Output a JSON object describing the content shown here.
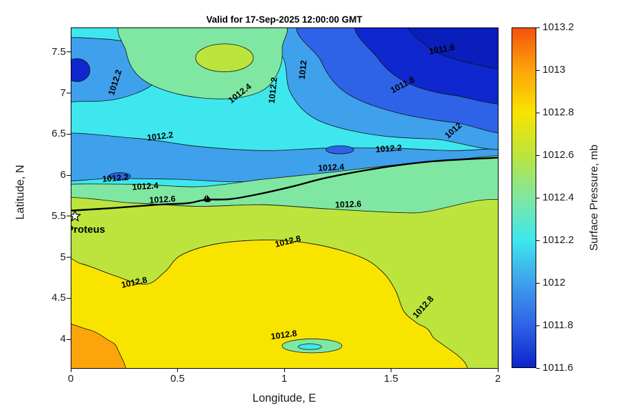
{
  "figure": {
    "title": "Valid for 17-Sep-2025 12:00:00 GMT",
    "background": "#FFFFFF"
  },
  "axes": {
    "xlabel": "Longitude, E",
    "ylabel": "Latitude, N",
    "xlim": [
      0,
      2
    ],
    "ylim": [
      3.65,
      7.8
    ],
    "x_ticks": [
      {
        "v": 0,
        "label": "0"
      },
      {
        "v": 0.5,
        "label": "0.5"
      },
      {
        "v": 1,
        "label": "1"
      },
      {
        "v": 1.5,
        "label": "1.5"
      },
      {
        "v": 2,
        "label": "2"
      }
    ],
    "y_ticks": [
      {
        "v": 4,
        "label": "4"
      },
      {
        "v": 4.5,
        "label": "4.5"
      },
      {
        "v": 5,
        "label": "5"
      },
      {
        "v": 5.5,
        "label": "5.5"
      },
      {
        "v": 6,
        "label": "6"
      },
      {
        "v": 6.5,
        "label": "6.5"
      },
      {
        "v": 7,
        "label": "7"
      },
      {
        "v": 7.5,
        "label": "7.5"
      }
    ]
  },
  "colorbar": {
    "label": "Surface Pressure, mb",
    "min": 1011.6,
    "max": 1013.2,
    "ticks": [
      {
        "v": 1013.2,
        "label": "1013.2"
      },
      {
        "v": 1013,
        "label": "1013"
      },
      {
        "v": 1012.8,
        "label": "1012.8"
      },
      {
        "v": 1012.6,
        "label": "1012.6"
      },
      {
        "v": 1012.4,
        "label": "1012.4"
      },
      {
        "v": 1012.2,
        "label": "1012.2"
      },
      {
        "v": 1012,
        "label": "1012"
      },
      {
        "v": 1011.8,
        "label": "1011.8"
      },
      {
        "v": 1011.6,
        "label": "1011.6"
      }
    ],
    "gradient_stops": [
      {
        "v": 1011.6,
        "color": "#0B24C8"
      },
      {
        "v": 1011.8,
        "color": "#2E63E8"
      },
      {
        "v": 1012.0,
        "color": "#3FA0EC"
      },
      {
        "v": 1012.2,
        "color": "#3EE7EE"
      },
      {
        "v": 1012.4,
        "color": "#7FE7A1"
      },
      {
        "v": 1012.6,
        "color": "#BCE43C"
      },
      {
        "v": 1012.8,
        "color": "#F9E400"
      },
      {
        "v": 1013.0,
        "color": "#FCA50A"
      },
      {
        "v": 1013.2,
        "color": "#F3530D"
      }
    ]
  },
  "chart_data": {
    "type": "heatmap",
    "subtype": "filled-contour-map",
    "title": "Valid for 17-Sep-2025 12:00:00 GMT",
    "xlabel": "Longitude, E",
    "ylabel": "Latitude, N",
    "value_label": "Surface Pressure, mb",
    "units": "mb",
    "xlim": [
      0,
      2
    ],
    "ylim": [
      3.65,
      7.8
    ],
    "contour_interval": 0.2,
    "contour_levels": [
      1011.6,
      1011.8,
      1012,
      1012.2,
      1012.4,
      1012.6,
      1012.8,
      1013,
      1013.2
    ],
    "base_fill": {
      "band": "1012.2-1012.4",
      "color": "#3EE7EE"
    },
    "shapes": [
      {
        "kind": "poly",
        "band": "1012-1012.2-trough",
        "color": "#3FA0EC",
        "points": [
          [
            -0.1,
            6.48
          ],
          [
            0.3,
            6.45
          ],
          [
            0.6,
            6.35
          ],
          [
            0.9,
            6.3
          ],
          [
            1.2,
            6.33
          ],
          [
            1.5,
            6.33
          ],
          [
            1.8,
            6.3
          ],
          [
            2.1,
            6.33
          ],
          [
            2.1,
            6.2
          ],
          [
            1.7,
            6.17
          ],
          [
            1.4,
            6.07
          ],
          [
            1.1,
            5.99
          ],
          [
            0.8,
            5.92
          ],
          [
            0.5,
            5.95
          ],
          [
            0.2,
            5.96
          ],
          [
            -0.1,
            5.97
          ]
        ]
      },
      {
        "kind": "ellipse",
        "band": "below-1012-oval",
        "color": "#2E63E8",
        "cx": 1.26,
        "cy": 6.31,
        "rx": 0.065,
        "ry": 0.05
      },
      {
        "kind": "ellipse",
        "band": "below-1012-dot",
        "color": "#2E63E8",
        "cx": 0.23,
        "cy": 5.99,
        "rx": 0.05,
        "ry": 0.04
      },
      {
        "kind": "poly",
        "band": "1012-1012.2-topleft",
        "color": "#3FA0EC",
        "points": [
          [
            -0.1,
            7.6
          ],
          [
            0.15,
            7.66
          ],
          [
            0.35,
            7.55
          ],
          [
            0.43,
            7.3
          ],
          [
            0.37,
            7.08
          ],
          [
            0.22,
            6.93
          ],
          [
            0.05,
            6.9
          ],
          [
            -0.1,
            6.95
          ]
        ]
      },
      {
        "kind": "ellipse",
        "band": "below-1011.8-leftspot",
        "color": "#0E27CE",
        "cx": 0.03,
        "cy": 7.28,
        "rx": 0.06,
        "ry": 0.14
      },
      {
        "kind": "poly",
        "band": "1012-1012.2-right",
        "color": "#3FA0EC",
        "points": [
          [
            0.93,
            7.9
          ],
          [
            1.0,
            7.4
          ],
          [
            1.03,
            7.0
          ],
          [
            1.15,
            6.68
          ],
          [
            1.4,
            6.5
          ],
          [
            1.7,
            6.44
          ],
          [
            2.1,
            6.42
          ],
          [
            2.1,
            7.9
          ]
        ]
      },
      {
        "kind": "poly",
        "band": "1011.8-1012-right",
        "color": "#2E63E8",
        "points": [
          [
            1.12,
            7.9
          ],
          [
            1.17,
            7.4
          ],
          [
            1.28,
            7.02
          ],
          [
            1.5,
            6.78
          ],
          [
            1.8,
            6.64
          ],
          [
            2.1,
            6.6
          ],
          [
            2.1,
            7.9
          ]
        ]
      },
      {
        "kind": "poly",
        "band": "1011.6-1011.8-right",
        "color": "#0E27CE",
        "points": [
          [
            1.37,
            7.9
          ],
          [
            1.44,
            7.42
          ],
          [
            1.58,
            7.12
          ],
          [
            1.8,
            6.97
          ],
          [
            2.1,
            6.93
          ],
          [
            2.1,
            7.9
          ]
        ]
      },
      {
        "kind": "poly",
        "band": "below-1011.6-corner",
        "color": "#0A1EBC",
        "points": [
          [
            1.6,
            7.9
          ],
          [
            1.68,
            7.55
          ],
          [
            1.88,
            7.36
          ],
          [
            2.1,
            7.32
          ],
          [
            2.1,
            7.9
          ]
        ]
      },
      {
        "kind": "poly",
        "band": "1012.4-1012.6-topmid",
        "color": "#7FE7A1",
        "points": [
          [
            0.28,
            7.9
          ],
          [
            0.26,
            7.5
          ],
          [
            0.33,
            7.18
          ],
          [
            0.5,
            6.99
          ],
          [
            0.72,
            6.93
          ],
          [
            0.89,
            7.02
          ],
          [
            0.97,
            7.25
          ],
          [
            0.99,
            7.55
          ],
          [
            0.95,
            7.9
          ]
        ]
      },
      {
        "kind": "ellipse",
        "band": "above-1012.6-topspot",
        "color": "#BCE43C",
        "cx": 0.72,
        "cy": 7.43,
        "rx": 0.135,
        "ry": 0.17
      },
      {
        "kind": "poly",
        "band": "1012.4-1012.6-band",
        "color": "#7FE7A1",
        "points": [
          [
            -0.1,
            5.87
          ],
          [
            0.3,
            5.89
          ],
          [
            0.6,
            5.86
          ],
          [
            0.9,
            5.95
          ],
          [
            1.2,
            6.03
          ],
          [
            1.5,
            6.12
          ],
          [
            1.8,
            6.19
          ],
          [
            2.1,
            6.19
          ],
          [
            2.1,
            5.56
          ],
          [
            1.6,
            5.54
          ],
          [
            1.2,
            5.59
          ],
          [
            0.9,
            5.64
          ],
          [
            0.6,
            5.62
          ],
          [
            0.3,
            5.66
          ],
          [
            -0.1,
            5.68
          ]
        ]
      },
      {
        "kind": "poly",
        "band": "1012.6-1012.8",
        "color": "#BCE43C",
        "points": [
          [
            -0.1,
            5.68
          ],
          [
            0.3,
            5.66
          ],
          [
            0.6,
            5.62
          ],
          [
            0.9,
            5.64
          ],
          [
            1.2,
            5.59
          ],
          [
            1.6,
            5.54
          ],
          [
            2.1,
            5.56
          ],
          [
            2.1,
            3.5
          ],
          [
            1.73,
            3.5
          ],
          [
            1.69,
            4.05
          ],
          [
            1.62,
            4.2
          ],
          [
            1.56,
            4.34
          ],
          [
            1.52,
            4.6
          ],
          [
            1.46,
            4.82
          ],
          [
            1.36,
            5.0
          ],
          [
            1.16,
            5.15
          ],
          [
            0.95,
            5.21
          ],
          [
            0.7,
            5.17
          ],
          [
            0.52,
            5.03
          ],
          [
            0.44,
            4.82
          ],
          [
            0.35,
            4.67
          ],
          [
            0.2,
            4.78
          ],
          [
            0.05,
            4.92
          ],
          [
            -0.1,
            4.97
          ]
        ]
      },
      {
        "kind": "poly",
        "band": "1012.8-1013",
        "color": "#F9E400",
        "points": [
          [
            -0.1,
            4.97
          ],
          [
            0.05,
            4.92
          ],
          [
            0.2,
            4.78
          ],
          [
            0.35,
            4.67
          ],
          [
            0.44,
            4.82
          ],
          [
            0.52,
            5.03
          ],
          [
            0.7,
            5.17
          ],
          [
            0.95,
            5.21
          ],
          [
            1.16,
            5.15
          ],
          [
            1.36,
            5.0
          ],
          [
            1.46,
            4.82
          ],
          [
            1.52,
            4.6
          ],
          [
            1.56,
            4.34
          ],
          [
            1.62,
            4.2
          ],
          [
            1.69,
            4.05
          ],
          [
            1.73,
            3.5
          ],
          [
            -0.1,
            3.5
          ]
        ]
      },
      {
        "kind": "ellipse",
        "band": "1012.6-dip-bottom",
        "color": "#7FE7A1",
        "cx": 1.13,
        "cy": 3.92,
        "rx": 0.14,
        "ry": 0.085
      },
      {
        "kind": "ellipse",
        "band": "1012.4-dip-bottom",
        "color": "#3EE7EE",
        "cx": 1.12,
        "cy": 3.91,
        "rx": 0.055,
        "ry": 0.035
      },
      {
        "kind": "poly",
        "band": "1013-1013.2-corner",
        "color": "#FCA50A",
        "points": [
          [
            -0.1,
            4.18
          ],
          [
            0.08,
            4.12
          ],
          [
            0.17,
            4.0
          ],
          [
            0.22,
            3.88
          ],
          [
            0.24,
            3.5
          ],
          [
            -0.1,
            3.5
          ]
        ]
      }
    ],
    "contour_labels": [
      {
        "text": "1012.2",
        "lon": 0.22,
        "lat": 7.12,
        "rot": -72
      },
      {
        "text": "1012.4",
        "lon": 0.8,
        "lat": 6.97,
        "rot": -38
      },
      {
        "text": "1012.2",
        "lon": 0.96,
        "lat": 7.03,
        "rot": -84
      },
      {
        "text": "1012",
        "lon": 1.1,
        "lat": 7.28,
        "rot": -84
      },
      {
        "text": "1011.8",
        "lon": 1.56,
        "lat": 7.07,
        "rot": -28
      },
      {
        "text": "1011.6",
        "lon": 1.74,
        "lat": 7.5,
        "rot": -10
      },
      {
        "text": "1012",
        "lon": 1.8,
        "lat": 6.52,
        "rot": -42
      },
      {
        "text": "1012.2",
        "lon": 0.42,
        "lat": 6.44,
        "rot": -7
      },
      {
        "text": "1012.2",
        "lon": 1.49,
        "lat": 6.29,
        "rot": -4
      },
      {
        "text": "1012.4",
        "lon": 1.22,
        "lat": 6.06,
        "rot": -3
      },
      {
        "text": "1012.2",
        "lon": 0.21,
        "lat": 5.93,
        "rot": -4
      },
      {
        "text": "1012.4",
        "lon": 0.35,
        "lat": 5.83,
        "rot": -4
      },
      {
        "text": "1012.6",
        "lon": 0.43,
        "lat": 5.67,
        "rot": -3
      },
      {
        "text": "1012.6",
        "lon": 1.3,
        "lat": 5.61,
        "rot": -2
      },
      {
        "text": "1012.8",
        "lon": 1.02,
        "lat": 5.16,
        "rot": -14
      },
      {
        "text": "1012.8",
        "lon": 0.3,
        "lat": 4.66,
        "rot": -12
      },
      {
        "text": "1012.8",
        "lon": 1.0,
        "lat": 4.02,
        "rot": -8
      },
      {
        "text": "1012.8",
        "lon": 1.66,
        "lat": 4.37,
        "rot": -48
      }
    ],
    "coastline": {
      "width": 2.4,
      "points": [
        [
          -0.05,
          5.56
        ],
        [
          0.2,
          5.6
        ],
        [
          0.4,
          5.64
        ],
        [
          0.55,
          5.66
        ],
        [
          0.63,
          5.7
        ],
        [
          0.75,
          5.71
        ],
        [
          0.9,
          5.78
        ],
        [
          1.05,
          5.87
        ],
        [
          1.2,
          5.97
        ],
        [
          1.45,
          6.09
        ],
        [
          1.7,
          6.17
        ],
        [
          2.05,
          6.22
        ]
      ]
    },
    "marker": {
      "label": "Proteus",
      "lon": 0.02,
      "lat": 5.5,
      "symbol": "pentagram"
    },
    "boat": {
      "lon": 0.64,
      "lat": 5.71
    }
  }
}
